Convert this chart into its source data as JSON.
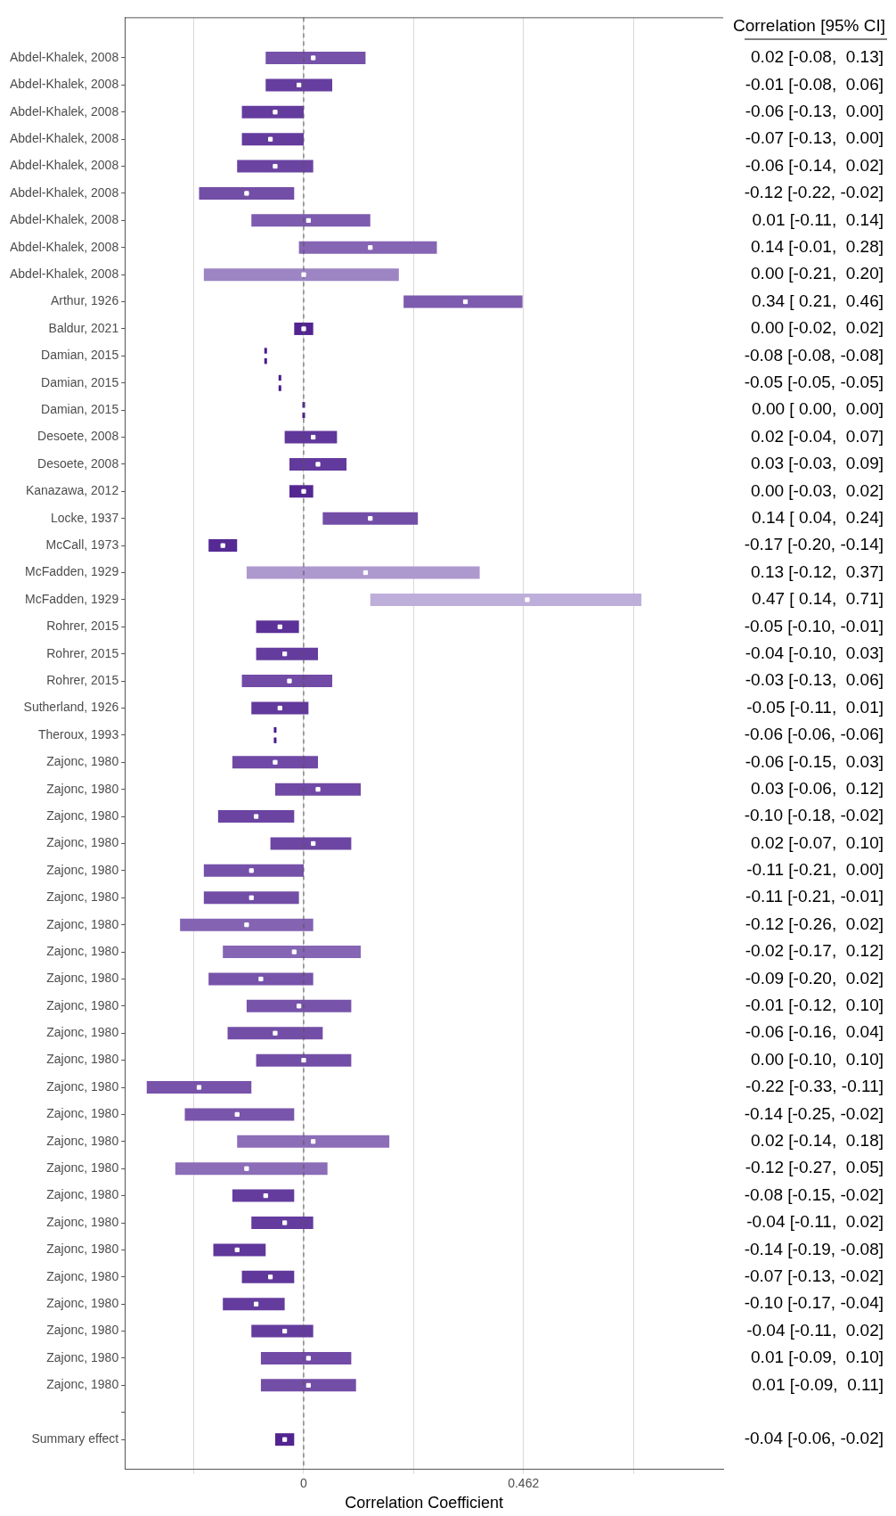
{
  "chart_data": {
    "type": "scatter",
    "orientation": "horizontal",
    "xlabel": "Correlation Coefficient",
    "categories": [
      "Abdel-Khalek, 2008",
      "Abdel-Khalek, 2008",
      "Abdel-Khalek, 2008",
      "Abdel-Khalek, 2008",
      "Abdel-Khalek, 2008",
      "Abdel-Khalek, 2008",
      "Abdel-Khalek, 2008",
      "Abdel-Khalek, 2008",
      "Abdel-Khalek, 2008",
      "Arthur, 1926",
      "Baldur, 2021",
      "Damian, 2015",
      "Damian, 2015",
      "Damian, 2015",
      "Desoete, 2008",
      "Desoete, 2008",
      "Kanazawa, 2012",
      "Locke, 1937",
      "McCall, 1973",
      "McFadden, 1929",
      "McFadden, 1929",
      "Rohrer, 2015",
      "Rohrer, 2015",
      "Rohrer, 2015",
      "Sutherland, 1926",
      "Theroux, 1993",
      "Zajonc, 1980",
      "Zajonc, 1980",
      "Zajonc, 1980",
      "Zajonc, 1980",
      "Zajonc, 1980",
      "Zajonc, 1980",
      "Zajonc, 1980",
      "Zajonc, 1980",
      "Zajonc, 1980",
      "Zajonc, 1980",
      "Zajonc, 1980",
      "Zajonc, 1980",
      "Zajonc, 1980",
      "Zajonc, 1980",
      "Zajonc, 1980",
      "Zajonc, 1980",
      "Zajonc, 1980",
      "Zajonc, 1980",
      "Zajonc, 1980",
      "Zajonc, 1980",
      "Zajonc, 1980",
      "Zajonc, 1980",
      "Zajonc, 1980",
      "Zajonc, 1980",
      null,
      "Summary effect"
    ],
    "series": [
      {
        "values": [
          0.02,
          -0.01,
          -0.06,
          -0.07,
          -0.06,
          -0.12,
          0.01,
          0.14,
          0.0,
          0.34,
          0.0,
          -0.08,
          -0.05,
          0.0,
          0.02,
          0.03,
          0.0,
          0.14,
          -0.17,
          0.13,
          0.47,
          -0.05,
          -0.04,
          -0.03,
          -0.05,
          -0.06,
          -0.06,
          0.03,
          -0.1,
          0.02,
          -0.11,
          -0.11,
          -0.12,
          -0.02,
          -0.09,
          -0.01,
          -0.06,
          0.0,
          -0.22,
          -0.14,
          0.02,
          -0.12,
          -0.08,
          -0.04,
          -0.14,
          -0.07,
          -0.1,
          -0.04,
          0.01,
          0.01,
          null,
          -0.04
        ],
        "errors": [
          [
            -0.08,
            0.13
          ],
          [
            -0.08,
            0.06
          ],
          [
            -0.13,
            0.0
          ],
          [
            -0.13,
            0.0
          ],
          [
            -0.14,
            0.02
          ],
          [
            -0.22,
            -0.02
          ],
          [
            -0.11,
            0.14
          ],
          [
            -0.01,
            0.28
          ],
          [
            -0.21,
            0.2
          ],
          [
            0.21,
            0.46
          ],
          [
            -0.02,
            0.02
          ],
          [
            -0.08,
            -0.08
          ],
          [
            -0.05,
            -0.05
          ],
          [
            0.0,
            0.0
          ],
          [
            -0.04,
            0.07
          ],
          [
            -0.03,
            0.09
          ],
          [
            -0.03,
            0.02
          ],
          [
            0.04,
            0.24
          ],
          [
            -0.2,
            -0.14
          ],
          [
            -0.12,
            0.37
          ],
          [
            0.14,
            0.71
          ],
          [
            -0.1,
            -0.01
          ],
          [
            -0.1,
            0.03
          ],
          [
            -0.13,
            0.06
          ],
          [
            -0.11,
            0.01
          ],
          [
            -0.06,
            -0.06
          ],
          [
            -0.15,
            0.03
          ],
          [
            -0.06,
            0.12
          ],
          [
            -0.18,
            -0.02
          ],
          [
            -0.07,
            0.1
          ],
          [
            -0.21,
            0.0
          ],
          [
            -0.21,
            -0.01
          ],
          [
            -0.26,
            0.02
          ],
          [
            -0.17,
            0.12
          ],
          [
            -0.2,
            0.02
          ],
          [
            -0.12,
            0.1
          ],
          [
            -0.16,
            0.04
          ],
          [
            -0.1,
            0.1
          ],
          [
            -0.33,
            -0.11
          ],
          [
            -0.25,
            -0.02
          ],
          [
            -0.14,
            0.18
          ],
          [
            -0.27,
            0.05
          ],
          [
            -0.15,
            -0.02
          ],
          [
            -0.11,
            0.02
          ],
          [
            -0.19,
            -0.08
          ],
          [
            -0.13,
            -0.02
          ],
          [
            -0.17,
            -0.04
          ],
          [
            -0.11,
            0.02
          ],
          [
            -0.09,
            0.1
          ],
          [
            -0.09,
            0.11
          ],
          null,
          [
            -0.06,
            -0.02
          ]
        ],
        "color": "#ffffff",
        "value_labels": [
          "0.02 [-0.08,  0.13]",
          "-0.01 [-0.08,  0.06]",
          "-0.06 [-0.13,  0.00]",
          "-0.07 [-0.13,  0.00]",
          "-0.06 [-0.14,  0.02]",
          "-0.12 [-0.22, -0.02]",
          "0.01 [-0.11,  0.14]",
          "0.14 [-0.01,  0.28]",
          "0.00 [-0.21,  0.20]",
          "0.34 [ 0.21,  0.46]",
          "0.00 [-0.02,  0.02]",
          "-0.08 [-0.08, -0.08]",
          "-0.05 [-0.05, -0.05]",
          "0.00 [ 0.00,  0.00]",
          "0.02 [-0.04,  0.07]",
          "0.03 [-0.03,  0.09]",
          "0.00 [-0.03,  0.02]",
          "0.14 [ 0.04,  0.24]",
          "-0.17 [-0.20, -0.14]",
          "0.13 [-0.12,  0.37]",
          "0.47 [ 0.14,  0.71]",
          "-0.05 [-0.10, -0.01]",
          "-0.04 [-0.10,  0.03]",
          "-0.03 [-0.13,  0.06]",
          "-0.05 [-0.11,  0.01]",
          "-0.06 [-0.06, -0.06]",
          "-0.06 [-0.15,  0.03]",
          "0.03 [-0.06,  0.12]",
          "-0.10 [-0.18, -0.02]",
          "0.02 [-0.07,  0.10]",
          "-0.11 [-0.21,  0.00]",
          "-0.11 [-0.21, -0.01]",
          "-0.12 [-0.26,  0.02]",
          "-0.02 [-0.17,  0.12]",
          "-0.09 [-0.20,  0.02]",
          "-0.01 [-0.12,  0.10]",
          "-0.06 [-0.16,  0.04]",
          "0.00 [-0.10,  0.10]",
          "-0.22 [-0.33, -0.11]",
          "-0.14 [-0.25, -0.02]",
          "0.02 [-0.14,  0.18]",
          "-0.12 [-0.27,  0.05]",
          "-0.08 [-0.15, -0.02]",
          "-0.04 [-0.11,  0.02]",
          "-0.14 [-0.19, -0.08]",
          "-0.07 [-0.13, -0.02]",
          "-0.10 [-0.17, -0.04]",
          "-0.04 [-0.11,  0.02]",
          "0.01 [-0.09,  0.10]",
          "0.01 [-0.09,  0.11]",
          null,
          "-0.04 [-0.06, -0.02]"
        ]
      }
    ],
    "xlim": [
      -0.376,
      0.882
    ],
    "xticks": [
      {
        "value": -0.231,
        "label": null
      },
      0,
      {
        "value": 0.231,
        "label": null
      },
      0.462,
      {
        "value": 0.693,
        "label": null
      }
    ],
    "grid": "x",
    "legend": false,
    "ref_lines": [
      {
        "axis": "x",
        "value": 0,
        "line_style": "dashed",
        "color": "#555555"
      }
    ],
    "annotations": [
      "Correlation [95% CI]"
    ]
  }
}
